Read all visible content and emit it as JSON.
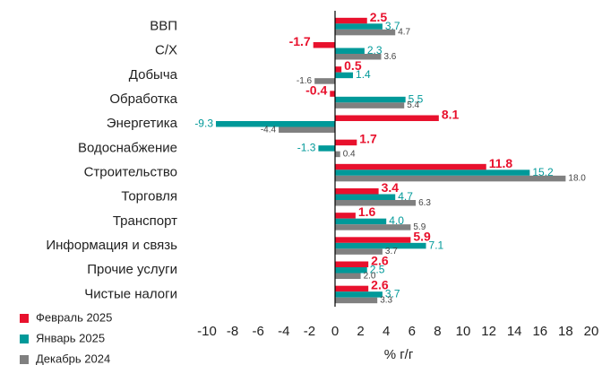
{
  "chart_data": {
    "type": "hbar",
    "categories": [
      "ВВП",
      "С/Х",
      "Добыча",
      "Обработка",
      "Энергетика",
      "Водоснабжение",
      "Строительство",
      "Торговля",
      "Транспорт",
      "Информация и связь",
      "Прочие услуги",
      "Чистые налоги"
    ],
    "series": [
      {
        "name": "Февраль 2025",
        "color": "#e8112d",
        "values": [
          2.5,
          -1.7,
          0.5,
          -0.4,
          8.1,
          1.7,
          11.8,
          3.4,
          1.6,
          5.9,
          2.6,
          2.6
        ],
        "value_labels": [
          "2.5",
          "-1.7",
          "0.5",
          "-0.4",
          "8.1",
          "1.7",
          "11.8",
          "3.4",
          "1.6",
          "5.9",
          "2.6",
          "2.6"
        ]
      },
      {
        "name": "Январь 2025",
        "color": "#009999",
        "values": [
          3.7,
          2.3,
          1.4,
          5.5,
          -9.3,
          -1.3,
          15.2,
          4.7,
          4.0,
          7.1,
          2.5,
          3.7
        ],
        "value_labels": [
          "3.7",
          "2.3",
          "1.4",
          "5.5",
          "-9.3",
          "-1.3",
          "15.2",
          "4.7",
          "4.0",
          "7.1",
          "2.5",
          "3.7"
        ]
      },
      {
        "name": "Декабрь 2024",
        "color": "#808080",
        "values": [
          4.7,
          3.6,
          -1.6,
          5.4,
          -4.4,
          0.4,
          18.0,
          6.3,
          5.9,
          3.7,
          2.0,
          3.3
        ],
        "value_labels": [
          "4.7",
          "3.6",
          "-1.6",
          "5.4",
          "-4.4",
          "0.4",
          "18.0",
          "6.3",
          "5.9",
          "3.7",
          "2.0",
          "3.3"
        ]
      }
    ],
    "x_label": "% г/г",
    "xlim": [
      -10,
      20
    ],
    "xticks": [
      -10,
      -8,
      -6,
      -4,
      -2,
      0,
      2,
      4,
      6,
      8,
      10,
      12,
      14,
      16,
      18,
      20
    ],
    "grid": false,
    "legend": "bottom-left"
  }
}
